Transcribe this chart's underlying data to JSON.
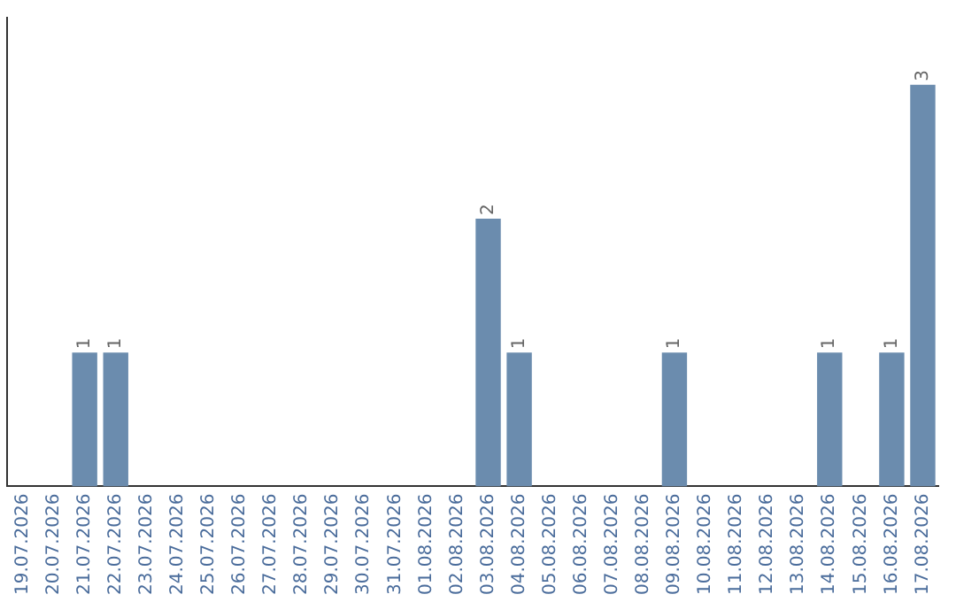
{
  "chart_data": {
    "type": "bar",
    "categories": [
      "19.07.2026",
      "20.07.2026",
      "21.07.2026",
      "22.07.2026",
      "23.07.2026",
      "24.07.2026",
      "25.07.2026",
      "26.07.2026",
      "27.07.2026",
      "28.07.2026",
      "29.07.2026",
      "30.07.2026",
      "31.07.2026",
      "01.08.2026",
      "02.08.2026",
      "03.08.2026",
      "04.08.2026",
      "05.08.2026",
      "06.08.2026",
      "07.08.2026",
      "08.08.2026",
      "09.08.2026",
      "10.08.2026",
      "11.08.2026",
      "12.08.2026",
      "13.08.2026",
      "14.08.2026",
      "15.08.2026",
      "16.08.2026",
      "17.08.2026"
    ],
    "values": [
      0,
      0,
      1,
      1,
      0,
      0,
      0,
      0,
      0,
      0,
      0,
      0,
      0,
      0,
      0,
      2,
      1,
      0,
      0,
      0,
      0,
      1,
      0,
      0,
      0,
      0,
      1,
      0,
      1,
      3
    ],
    "value_labels": [
      null,
      null,
      "1",
      "1",
      null,
      null,
      null,
      null,
      null,
      null,
      null,
      null,
      null,
      null,
      null,
      "2",
      "1",
      null,
      null,
      null,
      null,
      "1",
      null,
      null,
      null,
      null,
      "1",
      null,
      "1",
      "3"
    ],
    "color": "#6b8cae",
    "grid": false,
    "legend": false
  }
}
